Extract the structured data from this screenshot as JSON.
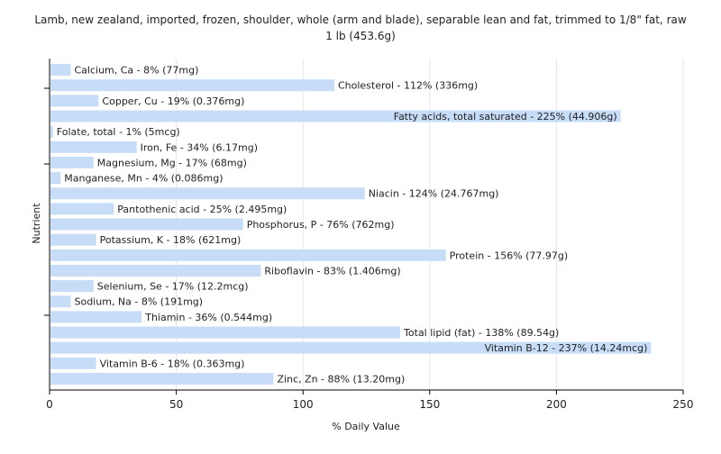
{
  "chart_data": {
    "type": "bar",
    "orientation": "horizontal",
    "title": "Lamb, new zealand, imported, frozen, shoulder, whole (arm and blade), separable lean and fat, trimmed to 1/8\" fat, raw 1 lb (453.6g)",
    "xlabel": "% Daily Value",
    "ylabel": "Nutrient",
    "xlim": [
      0,
      250
    ],
    "xticks": [
      0,
      50,
      100,
      150,
      200,
      250
    ],
    "grid": true,
    "bar_color": "#c6dcf7",
    "categories": [
      "Calcium, Ca",
      "Cholesterol",
      "Copper, Cu",
      "Fatty acids, total saturated",
      "Folate, total",
      "Iron, Fe",
      "Magnesium, Mg",
      "Manganese, Mn",
      "Niacin",
      "Pantothenic acid",
      "Phosphorus, P",
      "Potassium, K",
      "Protein",
      "Riboflavin",
      "Selenium, Se",
      "Sodium, Na",
      "Thiamin",
      "Total lipid (fat)",
      "Vitamin B-12",
      "Vitamin B-6",
      "Zinc, Zn"
    ],
    "values": [
      8,
      112,
      19,
      225,
      1,
      34,
      17,
      4,
      124,
      25,
      76,
      18,
      156,
      83,
      17,
      8,
      36,
      138,
      237,
      18,
      88
    ],
    "labels": [
      "Calcium, Ca - 8% (77mg)",
      "Cholesterol - 112% (336mg)",
      "Copper, Cu - 19% (0.376mg)",
      "Fatty acids, total saturated - 225% (44.906g)",
      "Folate, total - 1% (5mcg)",
      "Iron, Fe - 34% (6.17mg)",
      "Magnesium, Mg - 17% (68mg)",
      "Manganese, Mn - 4% (0.086mg)",
      "Niacin - 124% (24.767mg)",
      "Pantothenic acid - 25% (2.495mg)",
      "Phosphorus, P - 76% (762mg)",
      "Potassium, K - 18% (621mg)",
      "Protein - 156% (77.97g)",
      "Riboflavin - 83% (1.406mg)",
      "Selenium, Se - 17% (12.2mcg)",
      "Sodium, Na - 8% (191mg)",
      "Thiamin - 36% (0.544mg)",
      "Total lipid (fat) - 138% (89.54g)",
      "Vitamin B-12 - 237% (14.24mcg)",
      "Vitamin B-6 - 18% (0.363mg)",
      "Zinc, Zn - 88% (13.20mg)"
    ]
  }
}
